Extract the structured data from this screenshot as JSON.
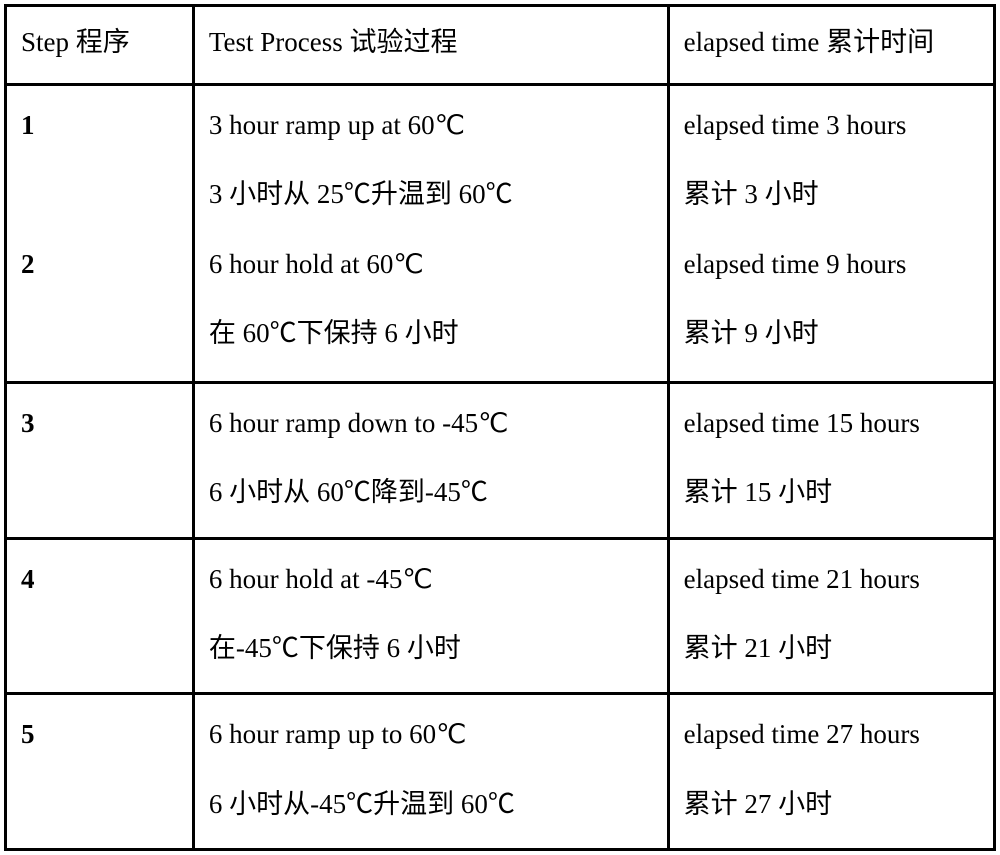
{
  "table": {
    "border_color": "#000000",
    "background_color": "#ffffff",
    "font_family": "Times New Roman / SimSun",
    "font_size_pt": 20,
    "line_height": 1.9,
    "columns": [
      {
        "key": "step",
        "header_en": "Step",
        "header_cn": "程序",
        "width_pct": 19
      },
      {
        "key": "process",
        "header_en": "Test Process",
        "header_cn": "试验过程",
        "width_pct": 48
      },
      {
        "key": "elapsed",
        "header_en": "elapsed time",
        "header_cn": "累计时间",
        "width_pct": 33
      }
    ],
    "groups": [
      {
        "rows": [
          {
            "step": "1",
            "process_en": "3 hour ramp up at 60℃",
            "process_cn": "3 小时从 25℃升温到 60℃",
            "elapsed_en": "elapsed time 3 hours",
            "elapsed_cn": "累计 3 小时"
          },
          {
            "step": "2",
            "process_en": "6 hour hold at 60℃",
            "process_cn": "在 60℃下保持 6 小时",
            "elapsed_en": "elapsed time 9 hours",
            "elapsed_cn": "累计 9 小时"
          }
        ]
      },
      {
        "rows": [
          {
            "step": "3",
            "process_en": "6 hour ramp down to -45℃",
            "process_cn": "6 小时从 60℃降到-45℃",
            "elapsed_en": "elapsed time 15 hours",
            "elapsed_cn": "累计 15 小时"
          }
        ]
      },
      {
        "rows": [
          {
            "step": "4",
            "process_en": "6 hour hold at -45℃",
            "process_cn": "在-45℃下保持 6 小时",
            "elapsed_en": "elapsed time 21 hours",
            "elapsed_cn": "累计 21 小时"
          }
        ]
      },
      {
        "rows": [
          {
            "step": "5",
            "process_en": "6 hour ramp up to 60℃",
            "process_cn": "6 小时从-45℃升温到 60℃",
            "elapsed_en": "elapsed time 27 hours",
            "elapsed_cn": "累计 27 小时"
          }
        ]
      }
    ]
  }
}
